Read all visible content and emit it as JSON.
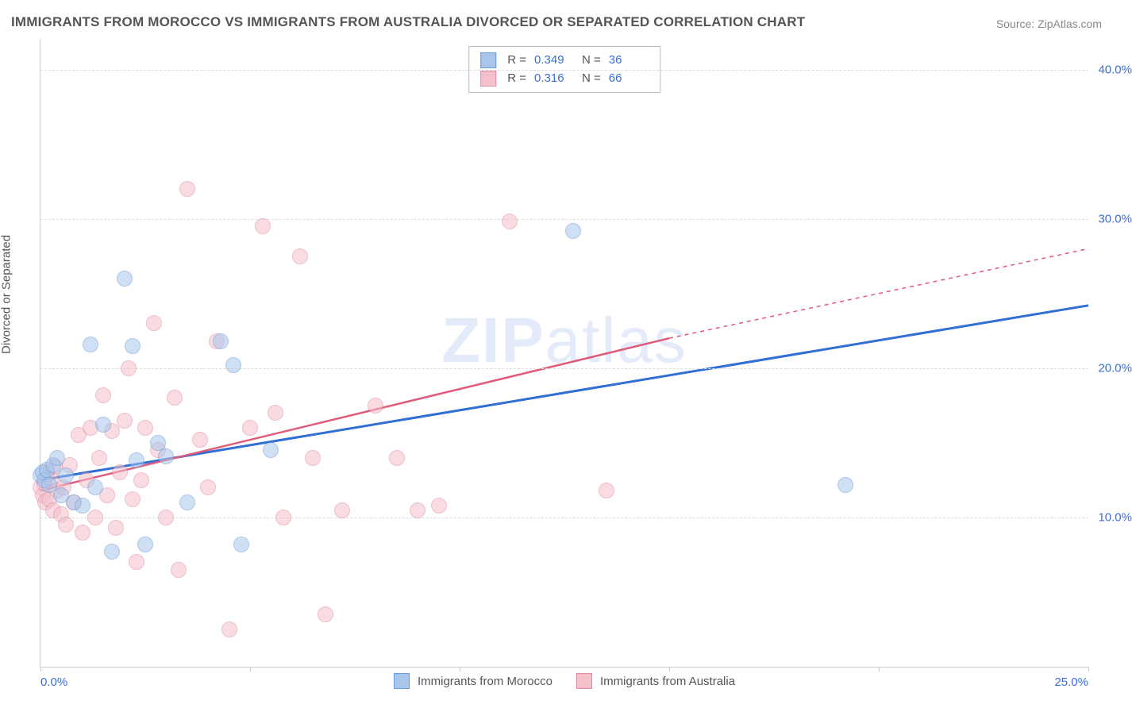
{
  "title": "IMMIGRANTS FROM MOROCCO VS IMMIGRANTS FROM AUSTRALIA DIVORCED OR SEPARATED CORRELATION CHART",
  "source": "Source: ZipAtlas.com",
  "watermark": {
    "part1": "ZIP",
    "part2": "atlas"
  },
  "chart": {
    "type": "scatter",
    "background_color": "#ffffff",
    "grid_color": "#dddddd",
    "axis_color": "#cccccc",
    "tick_label_color": "#3b6fd4",
    "xlim": [
      0,
      25
    ],
    "ylim": [
      0,
      42
    ],
    "x_ticks": [
      0,
      5,
      10,
      15,
      20,
      25
    ],
    "x_tick_labels": [
      "0.0%",
      "",
      "",
      "",
      "",
      "25.0%"
    ],
    "y_ticks": [
      10,
      20,
      30,
      40
    ],
    "y_tick_labels": [
      "10.0%",
      "20.0%",
      "30.0%",
      "40.0%"
    ],
    "y_axis_title": "Divorced or Separated",
    "point_radius": 9,
    "point_opacity": 0.55,
    "series": [
      {
        "name": "Immigrants from Morocco",
        "color_fill": "#a8c5ec",
        "color_stroke": "#6b9bd8",
        "r_label": "R =",
        "r_value": "0.349",
        "n_label": "N =",
        "n_value": "36",
        "trend": {
          "x1": 0,
          "y1": 12.5,
          "x2": 25,
          "y2": 24.2,
          "stroke": "#2f6fd6",
          "width": 3,
          "dash": "none",
          "extend_dash": false
        },
        "points": [
          [
            0.0,
            12.8
          ],
          [
            0.05,
            13.0
          ],
          [
            0.1,
            12.5
          ],
          [
            0.15,
            13.2
          ],
          [
            0.2,
            12.2
          ],
          [
            0.3,
            13.5
          ],
          [
            0.4,
            14.0
          ],
          [
            0.5,
            11.5
          ],
          [
            0.6,
            12.8
          ],
          [
            0.8,
            11.0
          ],
          [
            1.0,
            10.8
          ],
          [
            1.2,
            21.6
          ],
          [
            1.3,
            12.0
          ],
          [
            1.5,
            16.2
          ],
          [
            1.7,
            7.7
          ],
          [
            2.0,
            26.0
          ],
          [
            2.2,
            21.5
          ],
          [
            2.3,
            13.8
          ],
          [
            2.5,
            8.2
          ],
          [
            2.8,
            15.0
          ],
          [
            3.0,
            14.1
          ],
          [
            3.5,
            11.0
          ],
          [
            4.3,
            21.8
          ],
          [
            4.6,
            20.2
          ],
          [
            4.8,
            8.2
          ],
          [
            5.5,
            14.5
          ],
          [
            12.7,
            29.2
          ],
          [
            19.2,
            12.2
          ]
        ]
      },
      {
        "name": "Immigrants from Australia",
        "color_fill": "#f4c0cc",
        "color_stroke": "#e28a9f",
        "r_label": "R =",
        "r_value": "0.316",
        "n_label": "N =",
        "n_value": "66",
        "trend": {
          "x1": 0,
          "y1": 11.8,
          "x2": 15,
          "y2": 22.0,
          "stroke": "#e05a7a",
          "width": 2.5,
          "dash": "none",
          "extend_to": 25,
          "extend_y": 28.0
        },
        "points": [
          [
            0.0,
            12.0
          ],
          [
            0.05,
            11.5
          ],
          [
            0.1,
            12.3
          ],
          [
            0.12,
            11.0
          ],
          [
            0.15,
            13.0
          ],
          [
            0.2,
            11.2
          ],
          [
            0.25,
            12.6
          ],
          [
            0.3,
            10.5
          ],
          [
            0.35,
            13.4
          ],
          [
            0.4,
            11.8
          ],
          [
            0.5,
            10.2
          ],
          [
            0.55,
            12.0
          ],
          [
            0.6,
            9.5
          ],
          [
            0.7,
            13.5
          ],
          [
            0.8,
            11.0
          ],
          [
            0.9,
            15.5
          ],
          [
            1.0,
            9.0
          ],
          [
            1.1,
            12.5
          ],
          [
            1.2,
            16.0
          ],
          [
            1.3,
            10.0
          ],
          [
            1.4,
            14.0
          ],
          [
            1.5,
            18.2
          ],
          [
            1.6,
            11.5
          ],
          [
            1.7,
            15.8
          ],
          [
            1.8,
            9.3
          ],
          [
            1.9,
            13.0
          ],
          [
            2.0,
            16.5
          ],
          [
            2.1,
            20.0
          ],
          [
            2.2,
            11.2
          ],
          [
            2.3,
            7.0
          ],
          [
            2.4,
            12.5
          ],
          [
            2.5,
            16.0
          ],
          [
            2.7,
            23.0
          ],
          [
            2.8,
            14.5
          ],
          [
            3.0,
            10.0
          ],
          [
            3.2,
            18.0
          ],
          [
            3.3,
            6.5
          ],
          [
            3.5,
            32.0
          ],
          [
            3.8,
            15.2
          ],
          [
            4.0,
            12.0
          ],
          [
            4.2,
            21.8
          ],
          [
            4.5,
            2.5
          ],
          [
            5.0,
            16.0
          ],
          [
            5.3,
            29.5
          ],
          [
            5.6,
            17.0
          ],
          [
            5.8,
            10.0
          ],
          [
            6.2,
            27.5
          ],
          [
            6.5,
            14.0
          ],
          [
            6.8,
            3.5
          ],
          [
            7.2,
            10.5
          ],
          [
            8.0,
            17.5
          ],
          [
            8.5,
            14.0
          ],
          [
            9.0,
            10.5
          ],
          [
            9.5,
            10.8
          ],
          [
            11.2,
            29.8
          ],
          [
            13.5,
            11.8
          ]
        ]
      }
    ],
    "legend_bottom": [
      {
        "swatch_fill": "#a8c5ec",
        "swatch_stroke": "#6b9bd8",
        "label": "Immigrants from Morocco"
      },
      {
        "swatch_fill": "#f4c0cc",
        "swatch_stroke": "#e28a9f",
        "label": "Immigrants from Australia"
      }
    ]
  }
}
